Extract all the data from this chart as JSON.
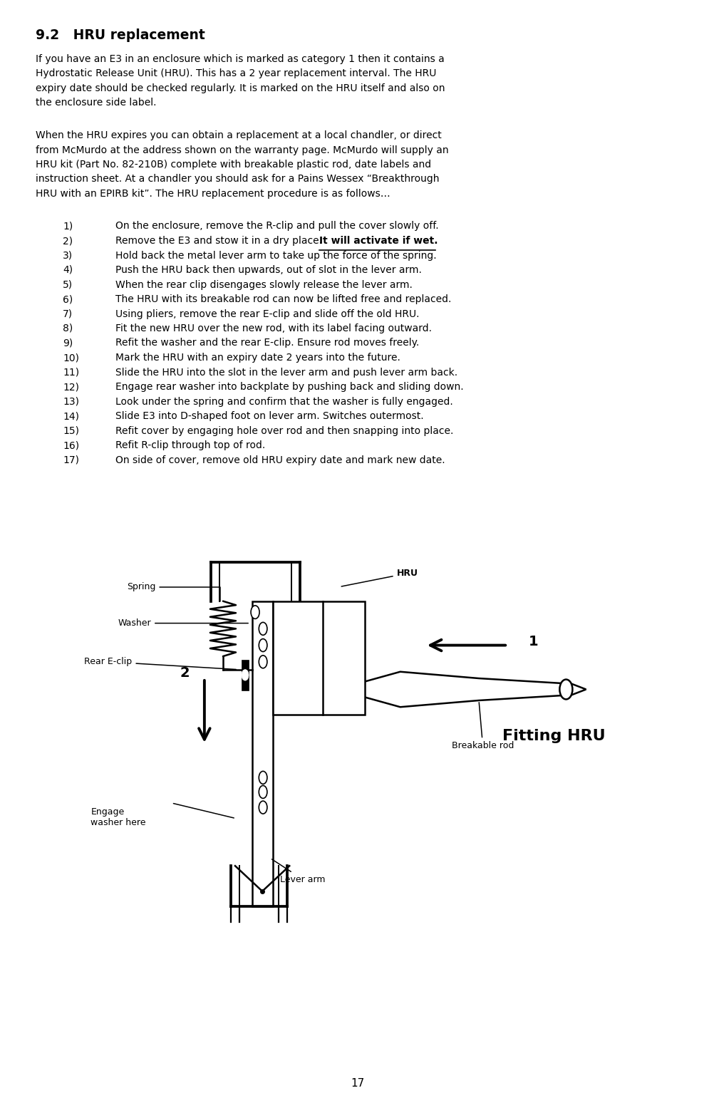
{
  "title": "9.2   HRU replacement",
  "p1_lines": [
    "If you have an E3 in an enclosure which is marked as category 1 then it contains a",
    "Hydrostatic Release Unit (HRU). This has a 2 year replacement interval. The HRU",
    "expiry date should be checked regularly. It is marked on the HRU itself and also on",
    "the enclosure side label."
  ],
  "p2_lines": [
    "When the HRU expires you can obtain a replacement at a local chandler, or direct",
    "from McMurdo at the address shown on the warranty page. McMurdo will supply an",
    "HRU kit (Part No. 82-210B) complete with breakable plastic rod, date labels and",
    "instruction sheet. At a chandler you should ask for a Pains Wessex “Breakthrough",
    "HRU with an EPIRB kit”. The HRU replacement procedure is as follows…"
  ],
  "steps": [
    {
      "num": "1)",
      "text": "On the enclosure, remove the R-clip and pull the cover slowly off.",
      "bold_suffix": null
    },
    {
      "num": "2)",
      "text": "Remove the E3 and stow it in a dry place. ",
      "bold_suffix": "It will activate if wet."
    },
    {
      "num": "3)",
      "text": "Hold back the metal lever arm to take up the force of the spring.",
      "bold_suffix": null
    },
    {
      "num": "4)",
      "text": "Push the HRU back then upwards, out of slot in the lever arm.",
      "bold_suffix": null
    },
    {
      "num": "5)",
      "text": "When the rear clip disengages slowly release the lever arm.",
      "bold_suffix": null
    },
    {
      "num": "6)",
      "text": "The HRU with its breakable rod can now be lifted free and replaced.",
      "bold_suffix": null
    },
    {
      "num": "7)",
      "text": "Using pliers, remove the rear E-clip and slide off the old HRU.",
      "bold_suffix": null
    },
    {
      "num": "8)",
      "text": "Fit the new HRU over the new rod, with its label facing outward.",
      "bold_suffix": null
    },
    {
      "num": "9)",
      "text": "Refit the washer and the rear E-clip. Ensure rod moves freely.",
      "bold_suffix": null
    },
    {
      "num": "10)",
      "text": "Mark the HRU with an expiry date 2 years into the future.",
      "bold_suffix": null
    },
    {
      "num": "11)",
      "text": "Slide the HRU into the slot in the lever arm and push lever arm back.",
      "bold_suffix": null
    },
    {
      "num": "12)",
      "text": "Engage rear washer into backplate by pushing back and sliding down.",
      "bold_suffix": null
    },
    {
      "num": "13)",
      "text": "Look under the spring and confirm that the washer is fully engaged.",
      "bold_suffix": null
    },
    {
      "num": "14)",
      "text": "Slide E3 into D-shaped foot on lever arm. Switches outermost.",
      "bold_suffix": null
    },
    {
      "num": "15)",
      "text": "Refit cover by engaging hole over rod and then snapping into place.",
      "bold_suffix": null
    },
    {
      "num": "16)",
      "text": "Refit R-clip through top of rod.",
      "bold_suffix": null
    },
    {
      "num": "17)",
      "text": "On side of cover, remove old HRU expiry date and mark new date.",
      "bold_suffix": null
    }
  ],
  "fitting_hru_title": "Fitting HRU",
  "page_number": "17",
  "bg_color": "#ffffff",
  "text_color": "#000000",
  "body_fontsize": 10.0,
  "title_fontsize": 13.5,
  "label_fontsize": 9.0
}
